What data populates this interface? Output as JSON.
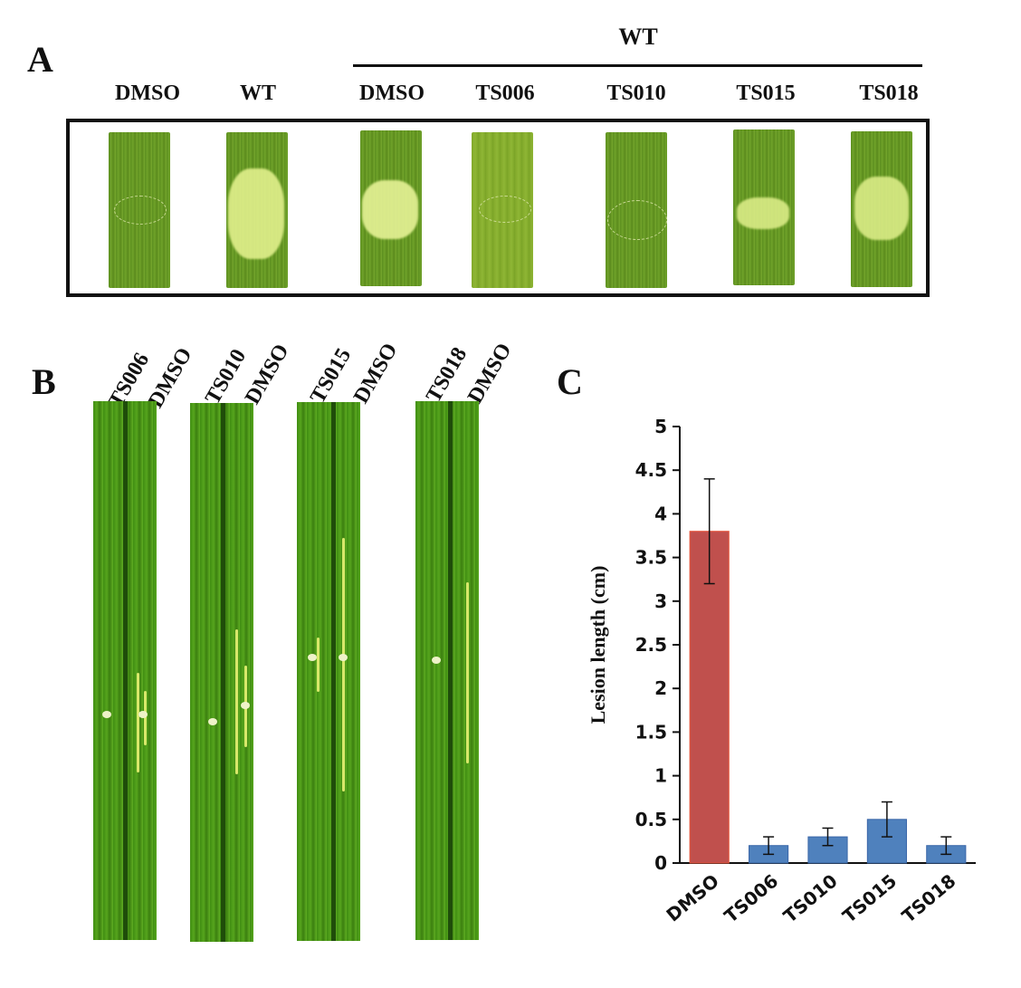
{
  "panel_a": {
    "letter": "A",
    "group_label": "WT",
    "headers": [
      "DMSO",
      "WT",
      "DMSO",
      "TS006",
      "TS010",
      "TS015",
      "TS018"
    ]
  },
  "panel_b": {
    "letter": "B",
    "labels": [
      "TS006",
      "DMSO",
      "TS010",
      "DMSO",
      "TS015",
      "DMSO",
      "TS018",
      "DMSO"
    ]
  },
  "panel_c": {
    "letter": "C"
  },
  "chart_data": {
    "type": "bar",
    "title": "",
    "xlabel": "",
    "ylabel": "Lesion length (cm)",
    "categories": [
      "DMSO",
      "TS006",
      "TS010",
      "TS015",
      "TS018"
    ],
    "values": [
      3.8,
      0.2,
      0.3,
      0.5,
      0.2
    ],
    "errors": [
      0.6,
      0.1,
      0.1,
      0.2,
      0.1
    ],
    "ylim": [
      0,
      5
    ],
    "yticks": [
      "0",
      "0.5",
      "1",
      "1.5",
      "2",
      "2.5",
      "3",
      "3.5",
      "4",
      "4.5",
      "5"
    ],
    "grid": false,
    "legend": "none",
    "colors": {
      "DMSO": "#c0504d",
      "treated": "#4f81bd"
    }
  }
}
